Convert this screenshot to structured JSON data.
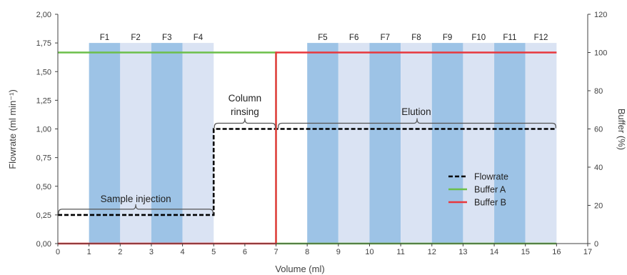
{
  "chart_data": {
    "type": "line",
    "xlabel": "Volume (ml)",
    "ylabel_left": "Flowrate (ml min⁻¹)",
    "ylabel_right": "Buffer (%)",
    "xlim": [
      0,
      17
    ],
    "ylim_left": [
      0,
      2
    ],
    "ylim_right": [
      0,
      120
    ],
    "x_ticks": [
      "0",
      "1",
      "2",
      "3",
      "4",
      "5",
      "6",
      "7",
      "8",
      "9",
      "10",
      "11",
      "12",
      "13",
      "14",
      "15",
      "16",
      "17"
    ],
    "y_left_ticks": [
      "0,00",
      "0,25",
      "0,50",
      "0,75",
      "1,00",
      "1,25",
      "1,50",
      "1,75",
      "2,00"
    ],
    "y_right_ticks": [
      "0",
      "20",
      "40",
      "60",
      "80",
      "100",
      "120"
    ],
    "grid": false,
    "legend_position": "bottom-right",
    "fractions": [
      {
        "label": "F1",
        "x0": 1,
        "x1": 2,
        "shade": "dark"
      },
      {
        "label": "F2",
        "x0": 2,
        "x1": 3,
        "shade": "light"
      },
      {
        "label": "F3",
        "x0": 3,
        "x1": 4,
        "shade": "dark"
      },
      {
        "label": "F4",
        "x0": 4,
        "x1": 5,
        "shade": "light"
      },
      {
        "label": "F5",
        "x0": 8,
        "x1": 9,
        "shade": "dark"
      },
      {
        "label": "F6",
        "x0": 9,
        "x1": 10,
        "shade": "light"
      },
      {
        "label": "F7",
        "x0": 10,
        "x1": 11,
        "shade": "dark"
      },
      {
        "label": "F8",
        "x0": 11,
        "x1": 12,
        "shade": "light"
      },
      {
        "label": "F9",
        "x0": 12,
        "x1": 13,
        "shade": "dark"
      },
      {
        "label": "F10",
        "x0": 13,
        "x1": 14,
        "shade": "light"
      },
      {
        "label": "F11",
        "x0": 14,
        "x1": 15,
        "shade": "dark"
      },
      {
        "label": "F12",
        "x0": 15,
        "x1": 16,
        "shade": "light"
      }
    ],
    "fraction_top": 1.75,
    "series": [
      {
        "name": "Flowrate",
        "axis": "left",
        "color": "#000000",
        "dash": true,
        "x": [
          0,
          5,
          5,
          7,
          7,
          16
        ],
        "y": [
          0.25,
          0.25,
          1.0,
          1.0,
          1.0,
          1.0
        ]
      },
      {
        "name": "Buffer A",
        "axis": "right",
        "color": "#6cbf4a",
        "x": [
          0,
          7,
          7,
          16
        ],
        "y": [
          100,
          100,
          0,
          0
        ]
      },
      {
        "name": "Buffer B",
        "axis": "right",
        "color": "#e8383d",
        "x": [
          0,
          7,
          7,
          16
        ],
        "y": [
          0,
          0,
          100,
          100
        ]
      }
    ],
    "annotations": [
      {
        "lines": [
          "Sample injection"
        ],
        "x": 2.5,
        "y": 0.36,
        "brace": [
          0,
          5,
          0.3
        ]
      },
      {
        "lines": [
          "Column",
          "rinsing"
        ],
        "x": 6.0,
        "y": 1.12,
        "brace": [
          5,
          7,
          1.05
        ]
      },
      {
        "lines": [
          "Elution"
        ],
        "x": 11.5,
        "y": 1.12,
        "brace": [
          7.05,
          16,
          1.05
        ]
      }
    ],
    "colors": {
      "fraction_dark": "#9dc3e6",
      "fraction_light": "#dae3f3",
      "axis": "#404040"
    }
  }
}
